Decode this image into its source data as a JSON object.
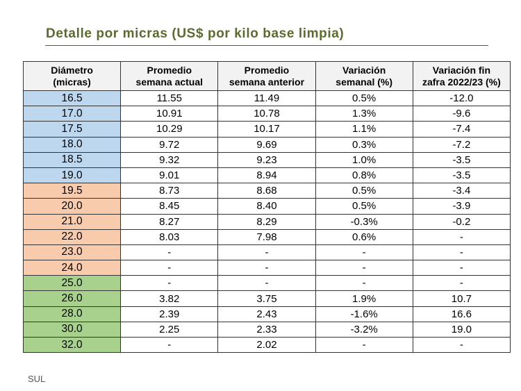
{
  "title": "Detalle por micras (US$ por kilo base limpia)",
  "footer": "SUL",
  "colors": {
    "title": "#5b6b2e",
    "blue": "#bdd7ee",
    "orange": "#f8cbad",
    "green": "#a9d18e"
  },
  "table": {
    "headers": [
      [
        "Diámetro",
        "(micras)"
      ],
      [
        "Promedio",
        "semana actual"
      ],
      [
        "Promedio",
        "semana anterior"
      ],
      [
        "Variación",
        "semanal (%)"
      ],
      [
        "Variación fin",
        "zafra 2022/23 (%)"
      ]
    ],
    "rows": [
      {
        "group": "blue",
        "cells": [
          "16.5",
          "11.55",
          "11.49",
          "0.5%",
          "-12.0"
        ]
      },
      {
        "group": "blue",
        "cells": [
          "17.0",
          "10.91",
          "10.78",
          "1.3%",
          "-9.6"
        ]
      },
      {
        "group": "blue",
        "cells": [
          "17.5",
          "10.29",
          "10.17",
          "1.1%",
          "-7.4"
        ]
      },
      {
        "group": "blue",
        "cells": [
          "18.0",
          "9.72",
          "9.69",
          "0.3%",
          "-7.2"
        ]
      },
      {
        "group": "blue",
        "cells": [
          "18.5",
          "9.32",
          "9.23",
          "1.0%",
          "-3.5"
        ]
      },
      {
        "group": "blue",
        "cells": [
          "19.0",
          "9.01",
          "8.94",
          "0.8%",
          "-3.5"
        ]
      },
      {
        "group": "orange",
        "cells": [
          "19.5",
          "8.73",
          "8.68",
          "0.5%",
          "-3.4"
        ]
      },
      {
        "group": "orange",
        "cells": [
          "20.0",
          "8.45",
          "8.40",
          "0.5%",
          "-3.9"
        ]
      },
      {
        "group": "orange",
        "cells": [
          "21.0",
          "8.27",
          "8.29",
          "-0.3%",
          "-0.2"
        ]
      },
      {
        "group": "orange",
        "cells": [
          "22.0",
          "8.03",
          "7.98",
          "0.6%",
          "-"
        ]
      },
      {
        "group": "orange",
        "cells": [
          "23.0",
          "-",
          "-",
          "-",
          "-"
        ]
      },
      {
        "group": "orange",
        "cells": [
          "24.0",
          "-",
          "-",
          "-",
          "-"
        ]
      },
      {
        "group": "green",
        "cells": [
          "25.0",
          "-",
          "-",
          "-",
          "-"
        ]
      },
      {
        "group": "green",
        "cells": [
          "26.0",
          "3.82",
          "3.75",
          "1.9%",
          "10.7"
        ]
      },
      {
        "group": "green",
        "cells": [
          "28.0",
          "2.39",
          "2.43",
          "-1.6%",
          "16.6"
        ]
      },
      {
        "group": "green",
        "cells": [
          "30.0",
          "2.25",
          "2.33",
          "-3.2%",
          "19.0"
        ]
      },
      {
        "group": "green",
        "cells": [
          "32.0",
          "-",
          "2.02",
          "-",
          "-"
        ]
      }
    ]
  }
}
